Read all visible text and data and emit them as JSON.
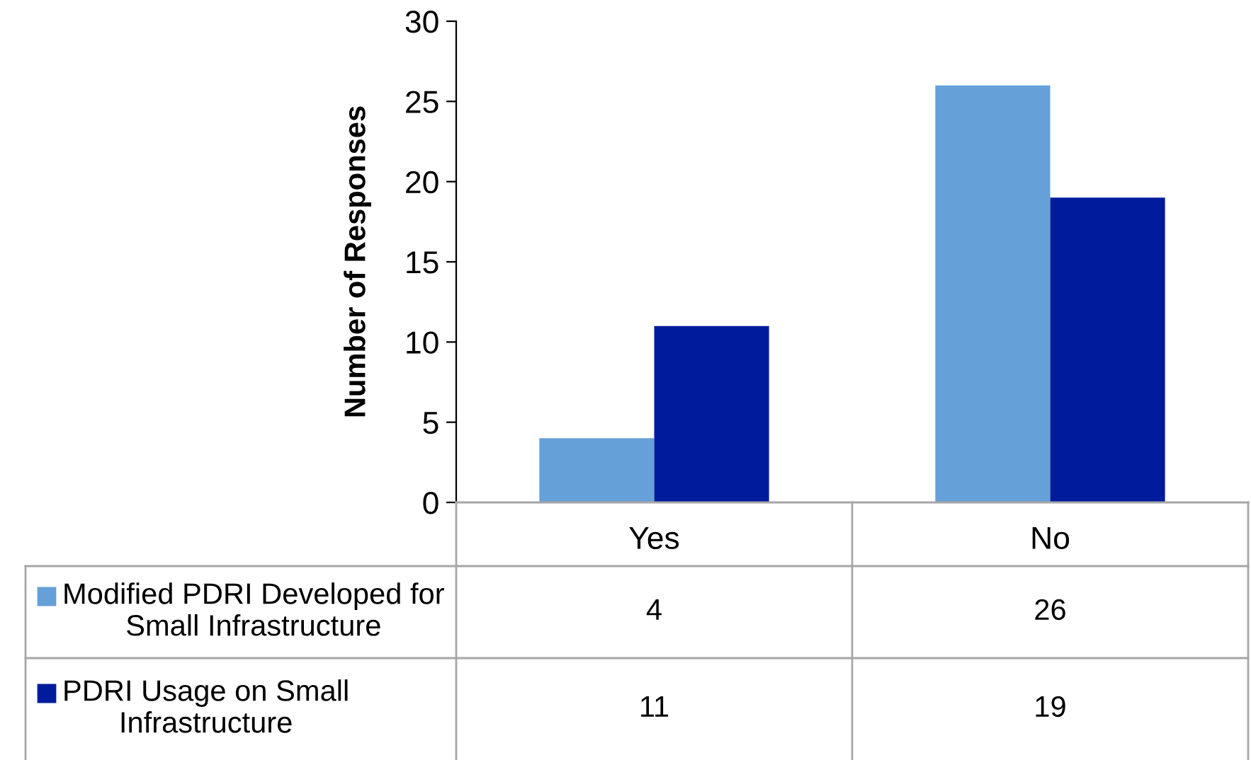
{
  "chart_data": {
    "type": "bar",
    "ylabel": "Number of Responses",
    "categories": [
      "Yes",
      "No"
    ],
    "series": [
      {
        "name": "Modified PDRI Developed for Small Infrastructure",
        "color": "#66a0d8",
        "values": [
          4,
          26
        ]
      },
      {
        "name": "PDRI Usage on Small Infrastructure",
        "color": "#001c9c",
        "values": [
          11,
          19
        ]
      }
    ],
    "ylim": [
      0,
      30
    ],
    "yticks": [
      0,
      5,
      10,
      15,
      20,
      25,
      30
    ],
    "grid": false,
    "legend": "bottom left",
    "data_labels": true
  }
}
